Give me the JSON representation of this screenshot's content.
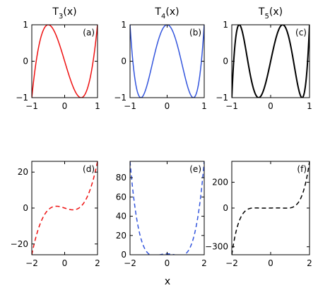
{
  "xlabel": "x",
  "chart_data": [
    {
      "type": "line",
      "title_main": "T",
      "title_sub": "3",
      "title_tail": "(x)",
      "tag": "(a)",
      "color": "#ee1111",
      "dash": "solid",
      "fn": "T3",
      "xlim": [
        -1,
        1
      ],
      "ylim": [
        -1,
        1
      ],
      "xticks": [
        -1,
        0,
        1
      ],
      "xtick_labels": [
        "−1",
        "0",
        "1"
      ],
      "yticks": [
        -1,
        0,
        1
      ],
      "ytick_labels": [
        "−1",
        "0",
        "1"
      ],
      "series": [
        {
          "name": "",
          "x": [
            -1,
            -0.5,
            0,
            0.5,
            1
          ],
          "y": [
            -1,
            1,
            0,
            -1,
            1
          ]
        }
      ]
    },
    {
      "type": "line",
      "title_main": "T",
      "title_sub": "4",
      "title_tail": "(x)",
      "tag": "(b)",
      "color": "#3355dd",
      "dash": "solid",
      "fn": "T4",
      "xlim": [
        -1,
        1
      ],
      "ylim": [
        -1,
        1
      ],
      "xticks": [
        -1,
        0,
        1
      ],
      "xtick_labels": [
        "−1",
        "0",
        "1"
      ],
      "yticks": [
        -1,
        0,
        1
      ],
      "ytick_labels": [
        "−1",
        "0",
        "1"
      ],
      "series": [
        {
          "name": "",
          "x": [
            -1,
            -0.707,
            0,
            0.707,
            1
          ],
          "y": [
            1,
            -1,
            1,
            -1,
            1
          ]
        }
      ]
    },
    {
      "type": "line",
      "title_main": "T",
      "title_sub": "5",
      "title_tail": "(x)",
      "tag": "(c)",
      "color": "#000000",
      "dash": "solid",
      "fn": "T5",
      "xlim": [
        -1,
        1
      ],
      "ylim": [
        -1,
        1
      ],
      "xticks": [
        -1,
        0,
        1
      ],
      "xtick_labels": [
        "−1",
        "0",
        "1"
      ],
      "yticks": [
        -1,
        0,
        1
      ],
      "ytick_labels": [
        "−1",
        "0",
        "1"
      ],
      "series": [
        {
          "name": "",
          "x": [
            -1,
            -0.809,
            -0.309,
            0.309,
            0.809,
            1
          ],
          "y": [
            -1,
            1,
            -1,
            1,
            -1,
            1
          ]
        }
      ]
    },
    {
      "type": "line",
      "title_main": "",
      "title_sub": "",
      "title_tail": "",
      "tag": "(d)",
      "color": "#ee1111",
      "dash": "dashed",
      "fn": "T3",
      "xlim": [
        -2,
        2
      ],
      "ylim": [
        -26,
        26
      ],
      "xticks": [
        -2,
        0,
        2
      ],
      "xtick_labels": [
        "−2",
        "0",
        "2"
      ],
      "yticks": [
        -20,
        0,
        20
      ],
      "ytick_labels": [
        "−20",
        "0",
        "20"
      ],
      "series": [
        {
          "name": "",
          "x": [
            -2,
            -1,
            -0.5,
            0,
            0.5,
            1,
            2
          ],
          "y": [
            -26,
            -1,
            1,
            0,
            -1,
            1,
            26
          ]
        }
      ]
    },
    {
      "type": "line",
      "title_main": "",
      "title_sub": "",
      "title_tail": "",
      "tag": "(e)",
      "color": "#3355dd",
      "dash": "dashed",
      "fn": "T4",
      "xlim": [
        -2,
        2
      ],
      "ylim": [
        0,
        97
      ],
      "xticks": [
        -2,
        0,
        2
      ],
      "xtick_labels": [
        "−2",
        "0",
        "2"
      ],
      "yticks": [
        0,
        20,
        40,
        60,
        80
      ],
      "ytick_labels": [
        "0",
        "20",
        "40",
        "60",
        "80"
      ],
      "series": [
        {
          "name": "",
          "x": [
            -2,
            -1,
            -0.707,
            0,
            0.707,
            1,
            2
          ],
          "y": [
            97,
            1,
            -1,
            1,
            -1,
            1,
            97
          ]
        }
      ]
    },
    {
      "type": "line",
      "title_main": "",
      "title_sub": "",
      "title_tail": "",
      "tag": "(f)",
      "color": "#000000",
      "dash": "dashed",
      "fn": "T5",
      "xlim": [
        -2,
        2
      ],
      "ylim": [
        -362,
        362
      ],
      "xticks": [
        -2,
        0,
        2
      ],
      "xtick_labels": [
        "−2",
        "0",
        "2"
      ],
      "yticks": [
        -300,
        0,
        200
      ],
      "ytick_labels": [
        "−300",
        "0",
        "200"
      ],
      "series": [
        {
          "name": "",
          "x": [
            -2,
            -1,
            0,
            1,
            2
          ],
          "y": [
            -362,
            -1,
            0,
            1,
            362
          ]
        }
      ]
    }
  ]
}
